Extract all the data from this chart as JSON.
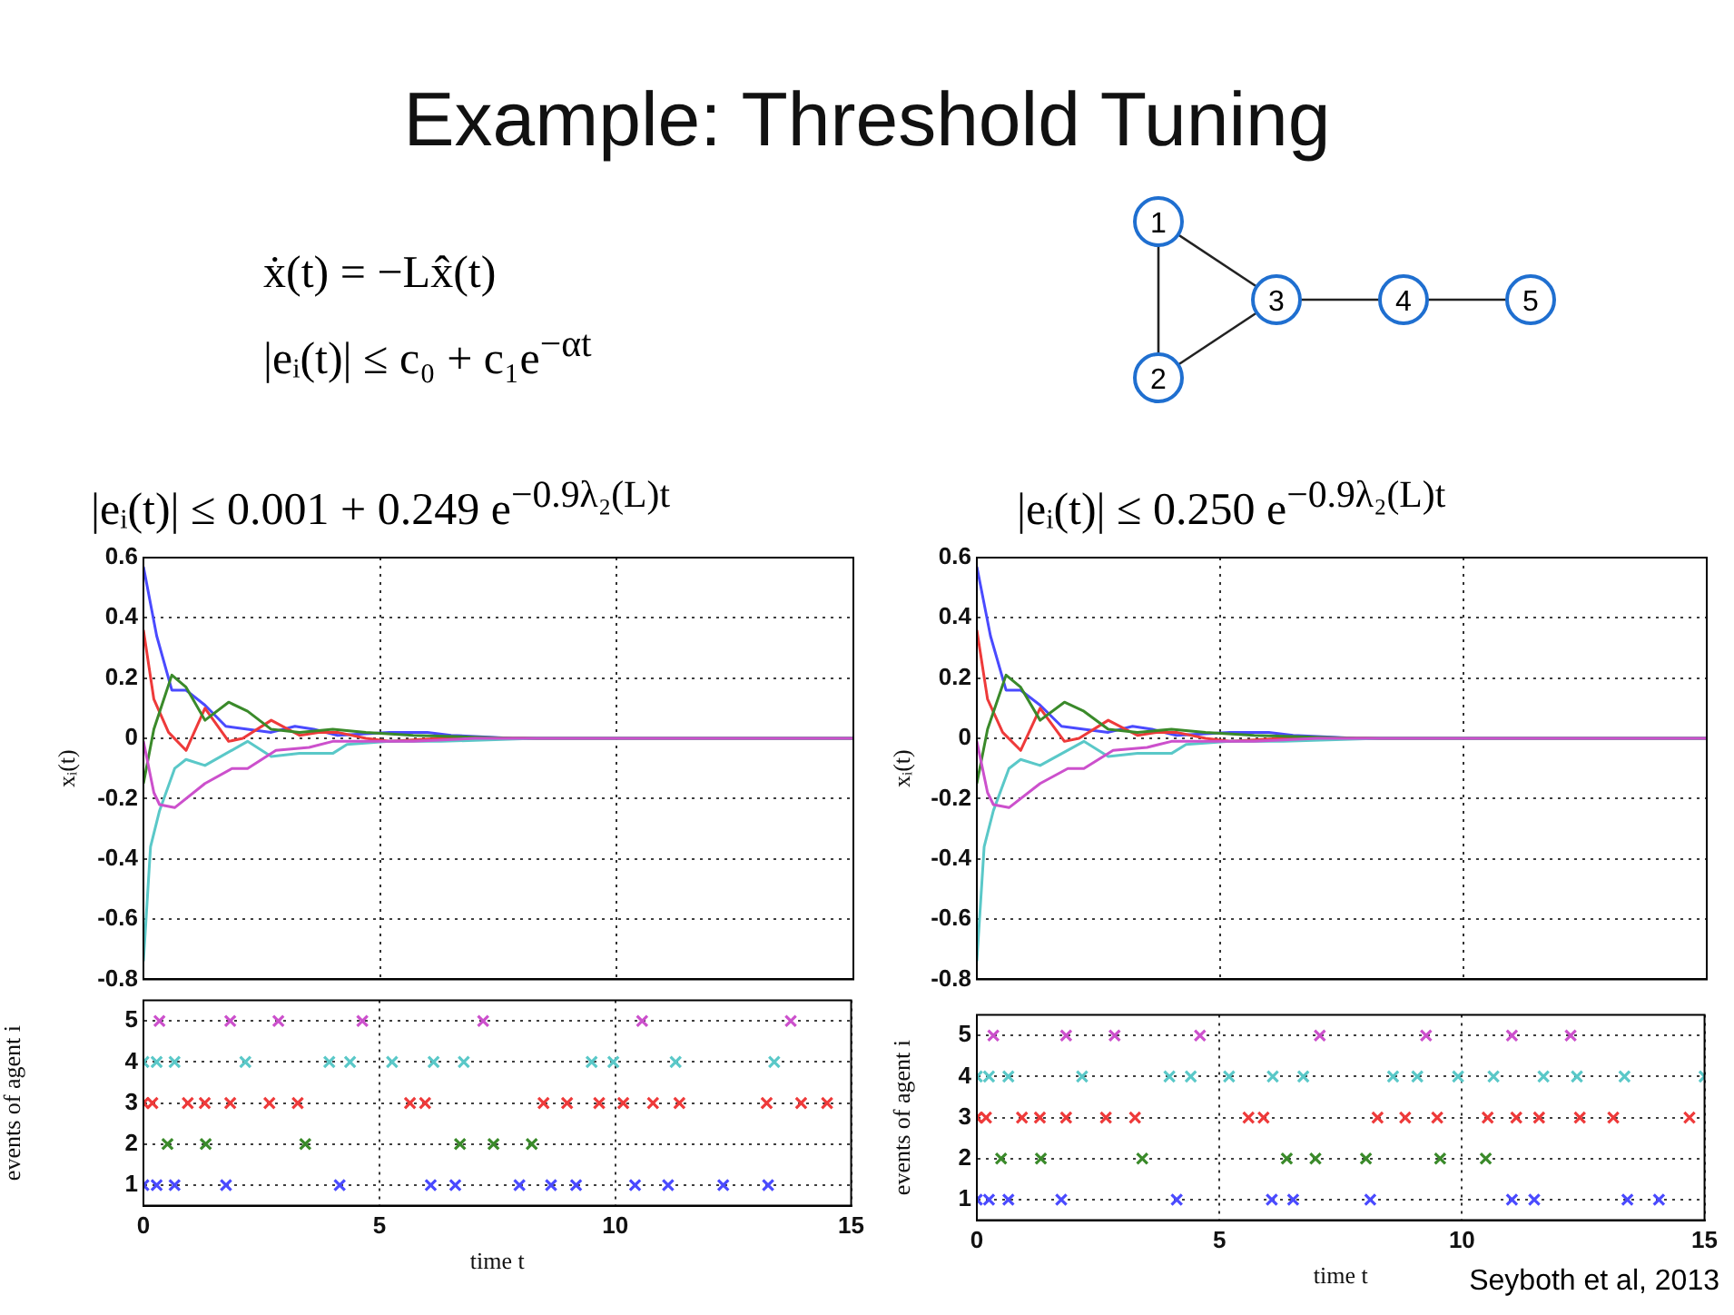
{
  "chart_data": [
    {
      "type": "other",
      "title": "Example: Threshold Tuning",
      "annotations": [
        "ẋ(t) = −Lx̂(t)",
        "|eᵢ(t)| ≤ c₀ + c₁e$^{−αt}$",
        "1",
        "2",
        "3",
        "4",
        "5",
        "Seyboth et al, 2013"
      ]
    },
    {
      "type": "line",
      "title": "|eᵢ(t)| ≤ 0.001 + 0.249 e$^{−0.9λ₂(L)t}$",
      "ylabel": "xᵢ(t)",
      "xlim": [
        0,
        15
      ],
      "xticks": [
        0,
        5,
        10,
        15
      ],
      "ylim": [
        -0.8,
        0.6
      ],
      "yticks": [
        -0.8,
        -0.6,
        -0.4,
        -0.2,
        0,
        0.2,
        0.4,
        0.6
      ],
      "grid": true,
      "legend": false,
      "tick_labels": "y",
      "series": [
        {
          "color": "#4a4aff",
          "x": [
            0,
            0.28,
            0.6,
            0.9,
            1.3,
            1.74,
            2.2,
            2.7,
            3.2,
            3.6,
            4.1,
            5.2,
            6,
            6.5,
            7.8,
            15
          ],
          "values": [
            0.57,
            0.34,
            0.16,
            0.16,
            0.11,
            0.04,
            0.03,
            0.02,
            0.04,
            0.03,
            0.01,
            0.02,
            0.02,
            0.01,
            0,
            0
          ]
        },
        {
          "color": "#ee3a3a",
          "x": [
            0,
            0.22,
            0.53,
            0.9,
            1.3,
            1.8,
            2.1,
            2.7,
            3.3,
            3.7,
            4.1,
            4.7,
            5.2,
            6.3,
            9.6,
            15
          ],
          "values": [
            0.36,
            0.13,
            0.02,
            -0.04,
            0.1,
            -0.01,
            0,
            0.06,
            0.01,
            0.02,
            0.02,
            0,
            -0.01,
            0,
            0,
            0
          ]
        },
        {
          "color": "#3a8a2a",
          "x": [
            0,
            0.22,
            0.6,
            0.9,
            1.3,
            1.8,
            2.2,
            2.7,
            3.3,
            4,
            4.7,
            5.7,
            7.8,
            15
          ],
          "values": [
            -0.15,
            0.03,
            0.21,
            0.17,
            0.06,
            0.12,
            0.09,
            0.03,
            0.02,
            0.03,
            0.02,
            0.01,
            0,
            0
          ]
        },
        {
          "color": "#5ac8c8",
          "x": [
            0,
            0.15,
            0.34,
            0.66,
            0.9,
            1.3,
            2.2,
            2.7,
            3.3,
            4,
            4.3,
            5.2,
            6.3,
            8.3,
            15
          ],
          "values": [
            -0.74,
            -0.36,
            -0.24,
            -0.1,
            -0.07,
            -0.09,
            -0.01,
            -0.06,
            -0.05,
            -0.05,
            -0.02,
            -0.01,
            -0.01,
            0,
            0
          ]
        },
        {
          "color": "#cc50cc",
          "x": [
            0,
            0.22,
            0.34,
            0.66,
            1.3,
            1.87,
            2.2,
            2.8,
            3.5,
            4,
            4.7,
            5.7,
            7,
            15
          ],
          "values": [
            -0.01,
            -0.18,
            -0.22,
            -0.23,
            -0.15,
            -0.1,
            -0.1,
            -0.04,
            -0.03,
            -0.01,
            -0.01,
            -0.01,
            0,
            0
          ]
        }
      ]
    },
    {
      "type": "scatter",
      "xlabel": "time t",
      "ylabel": "events of agent i",
      "xlim": [
        0,
        15
      ],
      "xticks": [
        0,
        5,
        10,
        15
      ],
      "ylim": [
        0.5,
        5.5
      ],
      "yticks": [
        1,
        2,
        3,
        4,
        5
      ],
      "grid": true,
      "legend": false,
      "marker": "cross",
      "series": [
        {
          "color": "#4a4aff",
          "x": [
            0,
            0.28,
            0.66,
            1.75,
            4.16,
            6.09,
            6.61,
            7.97,
            8.64,
            9.17,
            10.42,
            11.12,
            12.29,
            13.24
          ],
          "values": [
            1,
            1,
            1,
            1,
            1,
            1,
            1,
            1,
            1,
            1,
            1,
            1,
            1,
            1
          ]
        },
        {
          "color": "#3a8a2a",
          "x": [
            0.51,
            1.32,
            3.43,
            6.71,
            7.42,
            8.23
          ],
          "values": [
            2,
            2,
            2,
            2,
            2,
            2
          ]
        },
        {
          "color": "#ee3a3a",
          "x": [
            0,
            0.19,
            0.94,
            1.3,
            1.84,
            2.67,
            3.27,
            5.65,
            5.97,
            8.48,
            8.98,
            9.66,
            10.17,
            10.8,
            11.36,
            13.21,
            13.94,
            14.49
          ],
          "values": [
            3,
            3,
            3,
            3,
            3,
            3,
            3,
            3,
            3,
            3,
            3,
            3,
            3,
            3,
            3,
            3,
            3,
            3
          ]
        },
        {
          "color": "#5ac8c8",
          "x": [
            0,
            0.28,
            0.66,
            2.16,
            3.94,
            4.38,
            5.27,
            6.15,
            6.79,
            9.5,
            9.96,
            11.28,
            13.37
          ],
          "values": [
            4,
            4,
            4,
            4,
            4,
            4,
            4,
            4,
            4,
            4,
            4,
            4,
            4
          ]
        },
        {
          "color": "#cc50cc",
          "x": [
            0.34,
            1.84,
            2.86,
            4.64,
            7.2,
            10.57,
            13.72
          ],
          "values": [
            5,
            5,
            5,
            5,
            5,
            5,
            5
          ]
        }
      ]
    },
    {
      "type": "line",
      "title": "|eᵢ(t)| ≤ 0.250 e$^{−0.9λ₂(L)t}$",
      "ylabel": "xᵢ(t)",
      "xlim": [
        0,
        15
      ],
      "xticks": [
        0,
        5,
        10,
        15
      ],
      "ylim": [
        -0.8,
        0.6
      ],
      "yticks": [
        -0.8,
        -0.6,
        -0.4,
        -0.2,
        0,
        0.2,
        0.4,
        0.6
      ],
      "grid": true,
      "legend": false,
      "tick_labels": "y",
      "series": [
        {
          "color": "#4a4aff",
          "x": [
            0,
            0.28,
            0.6,
            0.9,
            1.3,
            1.74,
            2.2,
            2.7,
            3.2,
            3.6,
            4.1,
            5.2,
            6,
            6.5,
            7.8,
            15
          ],
          "values": [
            0.57,
            0.34,
            0.16,
            0.16,
            0.11,
            0.04,
            0.03,
            0.02,
            0.04,
            0.03,
            0.01,
            0.02,
            0.02,
            0.01,
            0,
            0
          ]
        },
        {
          "color": "#ee3a3a",
          "x": [
            0,
            0.22,
            0.53,
            0.9,
            1.3,
            1.8,
            2.1,
            2.7,
            3.3,
            3.7,
            4.1,
            4.7,
            5.2,
            6.3,
            9.6,
            15
          ],
          "values": [
            0.36,
            0.13,
            0.02,
            -0.04,
            0.1,
            -0.01,
            0,
            0.06,
            0.01,
            0.02,
            0.02,
            0,
            -0.01,
            0,
            0,
            0
          ]
        },
        {
          "color": "#3a8a2a",
          "x": [
            0,
            0.22,
            0.6,
            0.9,
            1.3,
            1.8,
            2.2,
            2.7,
            3.3,
            4,
            4.7,
            5.7,
            7.8,
            15
          ],
          "values": [
            -0.15,
            0.03,
            0.21,
            0.17,
            0.06,
            0.12,
            0.09,
            0.03,
            0.02,
            0.03,
            0.02,
            0.01,
            0,
            0
          ]
        },
        {
          "color": "#5ac8c8",
          "x": [
            0,
            0.15,
            0.34,
            0.66,
            0.9,
            1.3,
            2.2,
            2.7,
            3.3,
            4,
            4.3,
            5.2,
            6.3,
            8.3,
            15
          ],
          "values": [
            -0.74,
            -0.36,
            -0.24,
            -0.1,
            -0.07,
            -0.09,
            -0.01,
            -0.06,
            -0.05,
            -0.05,
            -0.02,
            -0.01,
            -0.01,
            0,
            0
          ]
        },
        {
          "color": "#cc50cc",
          "x": [
            0,
            0.22,
            0.34,
            0.66,
            1.3,
            1.87,
            2.2,
            2.8,
            3.5,
            4,
            4.7,
            5.7,
            7,
            15
          ],
          "values": [
            -0.01,
            -0.18,
            -0.22,
            -0.23,
            -0.15,
            -0.1,
            -0.1,
            -0.04,
            -0.03,
            -0.01,
            -0.01,
            -0.01,
            0,
            0
          ]
        }
      ]
    },
    {
      "type": "scatter",
      "xlabel": "time t",
      "ylabel": "events of agent i",
      "xlim": [
        0,
        15
      ],
      "xticks": [
        0,
        5,
        10,
        15
      ],
      "ylim": [
        0.5,
        5.5
      ],
      "yticks": [
        1,
        2,
        3,
        4,
        5
      ],
      "grid": true,
      "legend": false,
      "marker": "cross",
      "series": [
        {
          "color": "#4a4aff",
          "x": [
            0,
            0.25,
            0.65,
            1.74,
            4.12,
            6.08,
            6.52,
            8.11,
            11.03,
            11.49,
            13.41,
            14.06
          ],
          "values": [
            1,
            1,
            1,
            1,
            1,
            1,
            1,
            1,
            1,
            1,
            1,
            1
          ]
        },
        {
          "color": "#3a8a2a",
          "x": [
            0.5,
            1.32,
            3.41,
            6.39,
            6.98,
            8.02,
            9.55,
            10.49
          ],
          "values": [
            2,
            2,
            2,
            2,
            2,
            2,
            2,
            2
          ]
        },
        {
          "color": "#ee3a3a",
          "x": [
            0,
            0.19,
            0.93,
            1.3,
            1.84,
            2.66,
            3.26,
            5.6,
            5.91,
            8.26,
            8.83,
            9.49,
            10.53,
            11.12,
            11.59,
            12.43,
            13.12,
            14.69
          ],
          "values": [
            3,
            3,
            3,
            3,
            3,
            3,
            3,
            3,
            3,
            3,
            3,
            3,
            3,
            3,
            3,
            3,
            3,
            3
          ]
        },
        {
          "color": "#5ac8c8",
          "x": [
            0,
            0.25,
            0.65,
            2.17,
            3.97,
            4.41,
            5.2,
            6.1,
            6.73,
            8.58,
            9.08,
            9.92,
            10.65,
            11.68,
            12.37,
            13.35,
            15
          ],
          "values": [
            4,
            4,
            4,
            4,
            4,
            4,
            4,
            4,
            4,
            4,
            4,
            4,
            4,
            4,
            4,
            4,
            4
          ]
        },
        {
          "color": "#cc50cc",
          "x": [
            0.34,
            1.84,
            2.84,
            4.6,
            7.07,
            9.26,
            11.03,
            12.24
          ],
          "values": [
            5,
            5,
            5,
            5,
            5,
            5,
            5,
            5
          ]
        }
      ]
    }
  ]
}
